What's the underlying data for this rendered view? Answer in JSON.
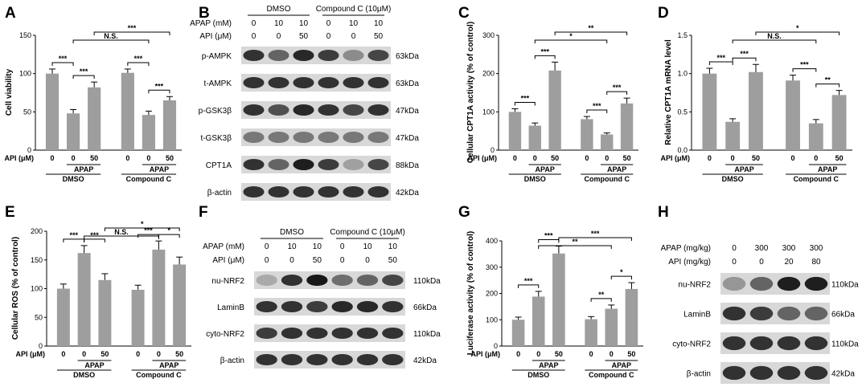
{
  "panel_letters": [
    "A",
    "B",
    "C",
    "D",
    "E",
    "F",
    "G",
    "H"
  ],
  "chart_data": [
    {
      "panel": "A",
      "type": "bar",
      "ylabel": "Cell viability",
      "ylim": [
        0,
        150
      ],
      "yticks": [
        0,
        50,
        100,
        150
      ],
      "x_axis_label": "API (μM)",
      "categories": [
        "0",
        "0",
        "50",
        "0",
        "0",
        "50"
      ],
      "values": [
        100,
        48,
        82,
        101,
        46,
        65
      ],
      "errors": [
        6,
        5,
        7,
        5,
        5,
        5
      ],
      "groups": [
        {
          "label": "DMSO",
          "sub": "APAP"
        },
        {
          "label": "Compound C",
          "sub": "APAP"
        }
      ],
      "annotations": [
        "***",
        "***",
        "***",
        "***",
        "N.S.",
        "***"
      ]
    },
    {
      "panel": "C",
      "type": "bar",
      "ylabel": "Cellular CPT1A activity (% of control)",
      "ylim": [
        0,
        300
      ],
      "yticks": [
        0,
        100,
        200,
        300
      ],
      "x_axis_label": "API (μM)",
      "categories": [
        "0",
        "0",
        "50",
        "0",
        "0",
        "50"
      ],
      "values": [
        100,
        64,
        208,
        81,
        41,
        122
      ],
      "errors": [
        8,
        7,
        22,
        7,
        4,
        14
      ],
      "groups": [
        {
          "label": "DMSO",
          "sub": "APAP"
        },
        {
          "label": "Compound C",
          "sub": "APAP"
        }
      ],
      "annotations": [
        "***",
        "***",
        "***",
        "***",
        "*",
        "**"
      ]
    },
    {
      "panel": "D",
      "type": "bar",
      "ylabel": "Relative CPT1A mRNA level",
      "ylim": [
        0,
        1.5
      ],
      "yticks": [
        "0.0",
        "0.5",
        "1.0",
        "1.5"
      ],
      "x_axis_label": "API (μM)",
      "categories": [
        "0",
        "0",
        "50",
        "0",
        "0",
        "50"
      ],
      "values": [
        1.0,
        0.37,
        1.02,
        0.91,
        0.35,
        0.72
      ],
      "errors": [
        0.07,
        0.04,
        0.1,
        0.07,
        0.05,
        0.06
      ],
      "groups": [
        {
          "label": "DMSO",
          "sub": "APAP"
        },
        {
          "label": "Compound C",
          "sub": "APAP"
        }
      ],
      "annotations": [
        "***",
        "***",
        "***",
        "**",
        "N.S.",
        "*"
      ]
    },
    {
      "panel": "E",
      "type": "bar",
      "ylabel": "Cellular ROS (% of control)",
      "ylim": [
        0,
        200
      ],
      "yticks": [
        0,
        50,
        100,
        150,
        200
      ],
      "x_axis_label": "API (μM)",
      "categories": [
        "0",
        "0",
        "50",
        "0",
        "0",
        "50"
      ],
      "values": [
        100,
        162,
        115,
        98,
        168,
        142
      ],
      "errors": [
        8,
        13,
        11,
        8,
        15,
        13
      ],
      "groups": [
        {
          "label": "DMSO",
          "sub": "APAP"
        },
        {
          "label": "Compound C",
          "sub": "APAP"
        }
      ],
      "annotations": [
        "***",
        "***",
        "***",
        "*",
        "N.S.",
        "*"
      ]
    },
    {
      "panel": "G",
      "type": "bar",
      "ylabel": "Luciferase activity (% of control)",
      "ylim": [
        0,
        400
      ],
      "yticks": [
        0,
        100,
        200,
        300,
        400
      ],
      "x_axis_label": "API (μM)",
      "categories": [
        "0",
        "0",
        "50",
        "0",
        "0",
        "50"
      ],
      "values": [
        100,
        188,
        352,
        102,
        142,
        217
      ],
      "errors": [
        10,
        20,
        28,
        10,
        14,
        24
      ],
      "groups": [
        {
          "label": "DMSO",
          "sub": "APAP"
        },
        {
          "label": "Compound C",
          "sub": "APAP"
        }
      ],
      "annotations": [
        "***",
        "***",
        "**",
        "*",
        "**",
        "***"
      ]
    }
  ],
  "blots": [
    {
      "panel": "B",
      "header_groups": [
        "DMSO",
        "Compound C (10μM)"
      ],
      "rows": [
        {
          "label": "APAP (mM)",
          "values": [
            "0",
            "10",
            "10",
            "0",
            "10",
            "10"
          ]
        },
        {
          "label": "API (μM)",
          "values": [
            "0",
            "0",
            "50",
            "0",
            "0",
            "50"
          ]
        }
      ],
      "bands": [
        {
          "label": "p-AMPK",
          "size": "63kDa",
          "intensity": [
            0.85,
            0.6,
            0.9,
            0.8,
            0.4,
            0.75
          ]
        },
        {
          "label": "t-AMPK",
          "size": "63kDa",
          "intensity": [
            0.85,
            0.85,
            0.85,
            0.85,
            0.85,
            0.85
          ]
        },
        {
          "label": "p-GSK3β",
          "size": "47kDa",
          "intensity": [
            0.85,
            0.7,
            0.9,
            0.85,
            0.75,
            0.85
          ]
        },
        {
          "label": "t-GSK3β",
          "size": "47kDa",
          "intensity": [
            0.5,
            0.5,
            0.5,
            0.5,
            0.5,
            0.5
          ]
        },
        {
          "label": "CPT1A",
          "size": "88kDa",
          "intensity": [
            0.85,
            0.6,
            0.95,
            0.8,
            0.3,
            0.75
          ]
        },
        {
          "label": "β-actin",
          "size": "42kDa",
          "intensity": [
            0.85,
            0.85,
            0.85,
            0.85,
            0.85,
            0.85
          ]
        }
      ]
    },
    {
      "panel": "F",
      "header_groups": [
        "DMSO",
        "Compound C (10μM)"
      ],
      "rows": [
        {
          "label": "APAP (mM)",
          "values": [
            "0",
            "10",
            "10",
            "0",
            "10",
            "10"
          ]
        },
        {
          "label": "API (μM)",
          "values": [
            "0",
            "0",
            "50",
            "0",
            "0",
            "50"
          ]
        }
      ],
      "bands": [
        {
          "label": "nu-NRF2",
          "size": "110kDa",
          "intensity": [
            0.25,
            0.85,
            0.98,
            0.55,
            0.6,
            0.75
          ]
        },
        {
          "label": "LaminB",
          "size": "66kDa",
          "intensity": [
            0.85,
            0.85,
            0.8,
            0.9,
            0.9,
            0.85
          ]
        },
        {
          "label": "cyto-NRF2",
          "size": "110kDa",
          "intensity": [
            0.8,
            0.85,
            0.85,
            0.85,
            0.85,
            0.85
          ]
        },
        {
          "label": "β-actin",
          "size": "42kDa",
          "intensity": [
            0.85,
            0.85,
            0.85,
            0.85,
            0.85,
            0.85
          ]
        }
      ]
    },
    {
      "panel": "H",
      "header_groups": [],
      "rows": [
        {
          "label": "APAP (mg/kg)",
          "values": [
            "0",
            "300",
            "300",
            "300"
          ]
        },
        {
          "label": "API (mg/kg)",
          "values": [
            "0",
            "0",
            "20",
            "80"
          ]
        }
      ],
      "bands": [
        {
          "label": "nu-NRF2",
          "size": "110kDa",
          "intensity": [
            0.35,
            0.6,
            0.95,
            0.95
          ]
        },
        {
          "label": "LaminB",
          "size": "66kDa",
          "intensity": [
            0.85,
            0.8,
            0.6,
            0.6
          ]
        },
        {
          "label": "cyto-NRF2",
          "size": "110kDa",
          "intensity": [
            0.85,
            0.85,
            0.85,
            0.85
          ]
        },
        {
          "label": "β-actin",
          "size": "42kDa",
          "intensity": [
            0.85,
            0.85,
            0.85,
            0.85
          ]
        }
      ]
    }
  ]
}
